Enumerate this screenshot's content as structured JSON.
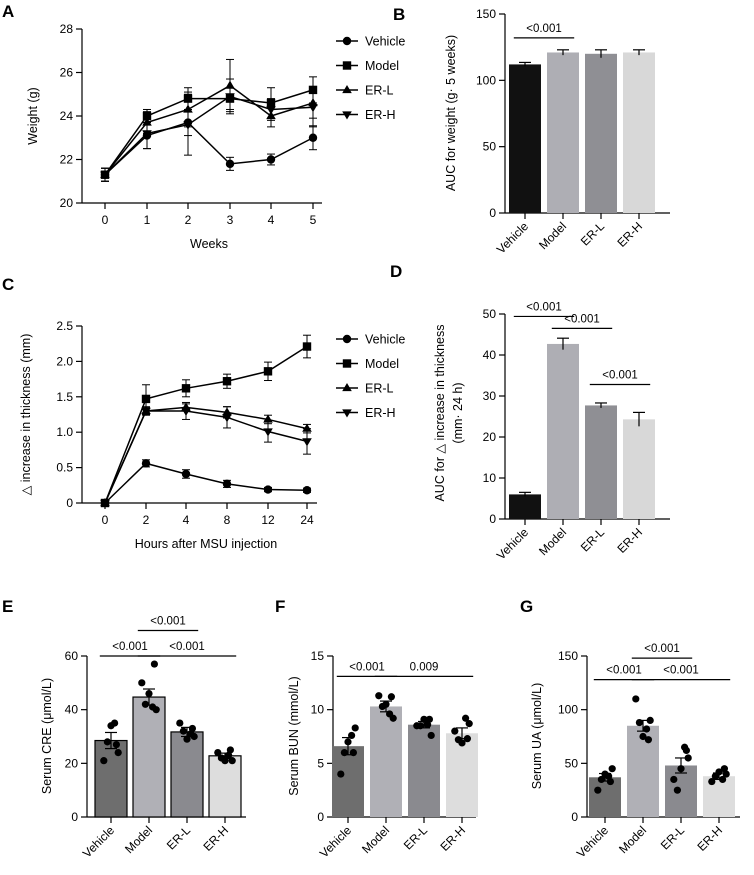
{
  "colors": {
    "black": "#000000",
    "bar_vehicle_A": "#111111",
    "bar_model_A": "#aeaeb4",
    "bar_erl_A": "#8f8f94",
    "bar_erh_A": "#d8d8d8",
    "bar_vehicle_EFG": "#6e6e6e",
    "bar_model_EFG": "#b0b0b6",
    "bar_erl_EFG": "#8a8a8f",
    "bar_erh_EFG": "#dddddd"
  },
  "chart_data": [
    {
      "panel": "A",
      "type": "line",
      "xlabel": "Weeks",
      "ylabel": "Weight (g)",
      "x": [
        0,
        1,
        2,
        3,
        4,
        5
      ],
      "xticks": [
        "0",
        "1",
        "2",
        "3",
        "4",
        "5"
      ],
      "ylim": [
        20,
        28
      ],
      "yticks": [
        "20",
        "22",
        "24",
        "26",
        "28"
      ],
      "series": [
        {
          "name": "Vehicle",
          "marker": "circle",
          "values": [
            21.3,
            23.1,
            23.7,
            21.8,
            22.0,
            23.0
          ],
          "err": [
            0.3,
            0.6,
            0.6,
            0.3,
            0.25,
            0.55
          ]
        },
        {
          "name": "Model",
          "marker": "square",
          "values": [
            21.3,
            24.0,
            24.8,
            24.8,
            24.6,
            25.2
          ],
          "err": [
            0.3,
            0.3,
            0.5,
            0.5,
            0.7,
            0.6
          ]
        },
        {
          "name": "ER-L",
          "marker": "triangle-up",
          "values": [
            21.3,
            23.7,
            24.3,
            25.4,
            24.0,
            24.6
          ],
          "err": [
            0.3,
            0.5,
            0.8,
            1.2,
            0.5,
            0.7
          ]
        },
        {
          "name": "ER-H",
          "marker": "triangle-down",
          "values": [
            21.3,
            23.2,
            23.6,
            24.9,
            24.3,
            24.4
          ],
          "err": [
            0.3,
            0.7,
            1.4,
            0.8,
            0.5,
            0.9
          ]
        }
      ]
    },
    {
      "panel": "B",
      "type": "bar",
      "ylabel": "AUC for weight (g· 5 weeks)",
      "categories": [
        "Vehicle",
        "Model",
        "ER-L",
        "ER-H"
      ],
      "values": [
        112,
        121,
        120,
        121
      ],
      "err": [
        1.5,
        2,
        3,
        2
      ],
      "ylim": [
        0,
        150
      ],
      "yticks": [
        "0",
        "50",
        "100",
        "150"
      ],
      "comparisons": [
        {
          "from": 0,
          "to": 1,
          "label": "<0.001",
          "y": 132
        }
      ]
    },
    {
      "panel": "C",
      "type": "line",
      "xlabel": "Hours after MSU injection",
      "ylabel": "△ increase in thickness (mm)",
      "x": [
        0,
        2,
        4,
        8,
        12,
        24
      ],
      "xticks": [
        "0",
        "2",
        "4",
        "8",
        "12",
        "24"
      ],
      "ylim": [
        0,
        2.5
      ],
      "yticks": [
        "0",
        "0.5",
        "1.0",
        "1.5",
        "2.0",
        "2.5"
      ],
      "series": [
        {
          "name": "Vehicle",
          "marker": "circle",
          "values": [
            0,
            0.56,
            0.41,
            0.27,
            0.19,
            0.18
          ],
          "err": [
            0.02,
            0.05,
            0.06,
            0.05,
            0.03,
            0.03
          ]
        },
        {
          "name": "Model",
          "marker": "square",
          "values": [
            0,
            1.47,
            1.62,
            1.72,
            1.86,
            2.21
          ],
          "err": [
            0.02,
            0.2,
            0.12,
            0.1,
            0.13,
            0.16
          ]
        },
        {
          "name": "ER-L",
          "marker": "triangle-up",
          "values": [
            0,
            1.3,
            1.35,
            1.28,
            1.18,
            1.05
          ],
          "err": [
            0.02,
            0.06,
            0.05,
            0.08,
            0.06,
            0.06
          ]
        },
        {
          "name": "ER-H",
          "marker": "triangle-down",
          "values": [
            0,
            1.3,
            1.3,
            1.21,
            1.01,
            0.87
          ],
          "err": [
            0.02,
            0.05,
            0.12,
            0.15,
            0.15,
            0.18
          ]
        }
      ]
    },
    {
      "panel": "D",
      "type": "bar",
      "ylabel": "AUC for △ increase in thickness",
      "ylabel2": "(mm· 24 h)",
      "categories": [
        "Vehicle",
        "Model",
        "ER-L",
        "ER-H"
      ],
      "values": [
        6,
        42.7,
        27.7,
        24.3
      ],
      "err": [
        0.5,
        1.4,
        0.6,
        1.7
      ],
      "ylim": [
        0,
        50
      ],
      "yticks": [
        "0",
        "10",
        "20",
        "30",
        "40",
        "50"
      ],
      "comparisons": [
        {
          "from": 0,
          "to": 1,
          "label": "<0.001",
          "y": 49.4
        },
        {
          "from": 1,
          "to": 2,
          "label": "<0.001",
          "y": 46.5
        },
        {
          "from": 2,
          "to": 3,
          "label": "<0.001",
          "y": 32.8
        }
      ]
    },
    {
      "panel": "E",
      "type": "bar",
      "ylabel": "Serum CRE (μmol/L)",
      "categories": [
        "Vehicle",
        "Model",
        "ER-L",
        "ER-H"
      ],
      "values": [
        28.5,
        44.7,
        31.7,
        22.8
      ],
      "err": [
        3.0,
        3.0,
        1.7,
        1.0
      ],
      "points": [
        [
          21,
          28,
          34,
          35,
          24,
          27
        ],
        [
          50,
          42,
          46,
          41,
          40,
          57
        ],
        [
          35,
          32,
          29,
          31,
          30,
          33
        ],
        [
          24,
          22,
          21,
          23,
          21,
          25
        ]
      ],
      "ylim": [
        0,
        60
      ],
      "yticks": [
        "0",
        "20",
        "40",
        "60"
      ],
      "comparisons": [
        {
          "from": 0,
          "to": 1,
          "label": "<0.001",
          "y": 60
        },
        {
          "from": 1,
          "to": 3,
          "label": "<0.001",
          "y": 60
        },
        {
          "from": 1,
          "to": 2,
          "label": "<0.001",
          "y": 69.5
        }
      ]
    },
    {
      "panel": "F",
      "type": "bar",
      "ylabel": "Serum BUN (mmol/L)",
      "categories": [
        "Vehicle",
        "Model",
        "ER-L",
        "ER-H"
      ],
      "values": [
        6.6,
        10.3,
        8.6,
        7.8
      ],
      "err": [
        0.8,
        0.5,
        0.3,
        0.5
      ],
      "points": [
        [
          4.0,
          6.0,
          7.0,
          7.6,
          8.3,
          6.0
        ],
        [
          11.3,
          10.3,
          10.5,
          9.6,
          9.2,
          11.2
        ],
        [
          8.5,
          8.5,
          9.1,
          8.6,
          7.6,
          9.1
        ],
        [
          8.0,
          7.2,
          6.9,
          9.2,
          8.7,
          7.3
        ]
      ],
      "ylim": [
        0,
        15
      ],
      "yticks": [
        "0",
        "5",
        "10",
        "15"
      ],
      "comparisons": [
        {
          "from": 0,
          "to": 1,
          "label": "<0.001",
          "y": 13.1
        },
        {
          "from": 1,
          "to": 3,
          "label": "0.009",
          "y": 13.1
        }
      ]
    },
    {
      "panel": "G",
      "type": "bar",
      "ylabel": "Serum UA (μmol/L)",
      "categories": [
        "Vehicle",
        "Model",
        "ER-L",
        "ER-H"
      ],
      "values": [
        37,
        85,
        48,
        38
      ],
      "err": [
        3.5,
        5,
        7,
        3
      ],
      "points": [
        [
          25,
          35,
          40,
          38,
          45,
          33
        ],
        [
          110,
          88,
          75,
          82,
          90,
          72
        ],
        [
          35,
          25,
          45,
          65,
          55,
          62
        ],
        [
          33,
          38,
          42,
          35,
          40,
          45
        ]
      ],
      "ylim": [
        0,
        150
      ],
      "yticks": [
        "0",
        "50",
        "100",
        "150"
      ],
      "comparisons": [
        {
          "from": 0,
          "to": 1,
          "label": "<0.001",
          "y": 128
        },
        {
          "from": 1,
          "to": 3,
          "label": "<0.001",
          "y": 128
        },
        {
          "from": 1,
          "to": 2,
          "label": "<0.001",
          "y": 148
        }
      ]
    }
  ]
}
